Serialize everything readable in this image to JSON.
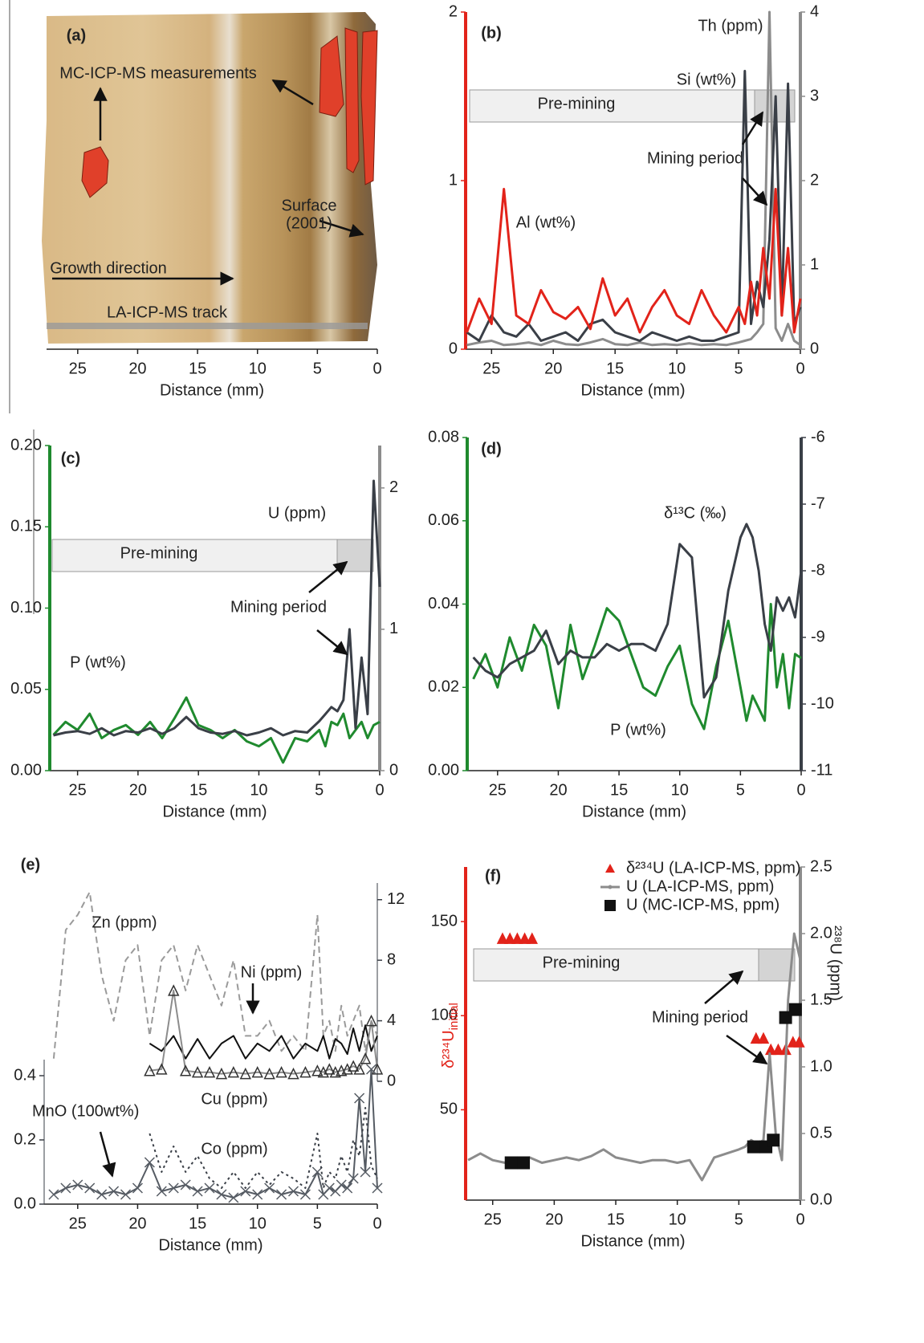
{
  "chart_data": [
    {
      "type": "image",
      "label": "(a)",
      "annotations": [
        "MC-ICP-MS measurements",
        "Surface",
        "(2001)",
        "Growth direction",
        "LA-ICP-MS track"
      ],
      "xlabel": "Distance (mm)",
      "xlim": [
        27.6,
        0
      ],
      "xticks": [
        25,
        20,
        15,
        10,
        5,
        0
      ]
    },
    {
      "type": "line",
      "label": "(b)",
      "xlabel": "Distance (mm)",
      "xlim": [
        27.1,
        0
      ],
      "xticks": [
        25,
        20,
        15,
        10,
        5,
        0
      ],
      "ylim": [
        0,
        2
      ],
      "yticks": [
        0,
        1,
        2
      ],
      "y2lim": [
        0,
        4
      ],
      "y2ticks": [
        0,
        1,
        2,
        3,
        4
      ],
      "y_color": "#e2231a",
      "y2_color": "#8c8c8c",
      "annotations": [
        "Pre-mining",
        "Mining period"
      ],
      "x": [
        27,
        26,
        25,
        24,
        23,
        22,
        21,
        20,
        19,
        18,
        17,
        16,
        15,
        14,
        13,
        12,
        11,
        10,
        9,
        8,
        7,
        6,
        5,
        4.5,
        4,
        3.5,
        3,
        2.5,
        2,
        1.5,
        1,
        0.5,
        0
      ],
      "series": [
        {
          "name": "Th (ppm)",
          "color": "#8c8c8c",
          "axis": "y2",
          "values": [
            0.05,
            0.08,
            0.1,
            0.05,
            0.06,
            0.08,
            0.05,
            0.1,
            0.06,
            0.05,
            0.08,
            0.12,
            0.06,
            0.05,
            0.08,
            0.05,
            0.06,
            0.05,
            0.07,
            0.05,
            0.06,
            0.05,
            0.08,
            0.1,
            0.12,
            0.2,
            0.3,
            4.0,
            0.25,
            0.1,
            0.3,
            0.1,
            0.05
          ]
        },
        {
          "name": "Si (wt%)",
          "color": "#3a3f47",
          "axis": "y2",
          "values": [
            0.2,
            0.1,
            0.4,
            0.2,
            0.15,
            0.3,
            0.1,
            0.15,
            0.2,
            0.1,
            0.3,
            0.35,
            0.2,
            0.15,
            0.1,
            0.2,
            0.15,
            0.1,
            0.15,
            0.1,
            0.1,
            0.15,
            0.2,
            3.3,
            0.3,
            0.8,
            0.5,
            1.3,
            3.0,
            0.4,
            3.15,
            0.3,
            0.5
          ]
        },
        {
          "name": "Al (wt%)",
          "color": "#e2231a",
          "values": [
            0.1,
            0.3,
            0.15,
            0.95,
            0.2,
            0.15,
            0.35,
            0.22,
            0.18,
            0.25,
            0.12,
            0.42,
            0.2,
            0.3,
            0.1,
            0.25,
            0.35,
            0.2,
            0.15,
            0.35,
            0.2,
            0.1,
            0.25,
            0.15,
            0.4,
            0.2,
            0.6,
            0.3,
            0.95,
            0.2,
            0.6,
            0.1,
            0.3
          ]
        }
      ]
    },
    {
      "type": "line",
      "label": "(c)",
      "xlabel": "Distance (mm)",
      "xlim": [
        27.3,
        0
      ],
      "xticks": [
        25,
        20,
        15,
        10,
        5,
        0
      ],
      "ylim": [
        0,
        0.2
      ],
      "yticks": [
        {
          "value": 0,
          "label": "0.00"
        },
        {
          "value": 0.05,
          "label": "0.05"
        },
        {
          "value": 0.1,
          "label": "0.10"
        },
        {
          "value": 0.15,
          "label": "0.15"
        },
        {
          "value": 0.2,
          "label": "0.20"
        }
      ],
      "y2lim": [
        0,
        2.3
      ],
      "y2ticks": [
        0,
        1,
        2
      ],
      "y_color": "#1f8a2e",
      "y2_color": "#8c8c8c",
      "annotations": [
        "Pre-mining",
        "Mining period"
      ],
      "x": [
        27,
        26,
        25,
        24,
        23,
        22,
        21,
        20,
        19,
        18,
        17,
        16,
        15,
        14,
        13,
        12,
        11,
        10,
        9,
        8,
        7,
        6,
        5,
        4.5,
        4,
        3.5,
        3,
        2.5,
        2,
        1.5,
        1,
        0.5,
        0
      ],
      "series": [
        {
          "name": "P (wt%)",
          "color": "#1f8a2e",
          "values": [
            0.022,
            0.03,
            0.025,
            0.035,
            0.02,
            0.025,
            0.028,
            0.022,
            0.03,
            0.02,
            0.032,
            0.045,
            0.028,
            0.025,
            0.02,
            0.025,
            0.018,
            0.015,
            0.02,
            0.005,
            0.02,
            0.018,
            0.025,
            0.015,
            0.03,
            0.028,
            0.035,
            0.02,
            0.025,
            0.03,
            0.02,
            0.028,
            0.03
          ]
        },
        {
          "name": "U (ppm)",
          "color": "#3a3f47",
          "axis": "y2",
          "values": [
            0.25,
            0.27,
            0.28,
            0.26,
            0.3,
            0.25,
            0.28,
            0.27,
            0.3,
            0.26,
            0.3,
            0.38,
            0.3,
            0.27,
            0.26,
            0.28,
            0.25,
            0.27,
            0.3,
            0.25,
            0.28,
            0.27,
            0.35,
            0.4,
            0.45,
            0.42,
            0.5,
            1.0,
            0.3,
            0.8,
            0.4,
            2.05,
            1.3
          ]
        }
      ]
    },
    {
      "type": "line",
      "label": "(d)",
      "xlabel": "Distance (mm)",
      "xlim": [
        27.5,
        0
      ],
      "xticks": [
        25,
        20,
        15,
        10,
        5,
        0
      ],
      "ylim": [
        0,
        0.08
      ],
      "yticks": [
        {
          "value": 0,
          "label": "0.00"
        },
        {
          "value": 0.02,
          "label": "0.02"
        },
        {
          "value": 0.04,
          "label": "0.04"
        },
        {
          "value": 0.06,
          "label": "0.06"
        },
        {
          "value": 0.08,
          "label": "0.08"
        }
      ],
      "y2lim": [
        -11,
        -6
      ],
      "y2ticks": [
        -6,
        -7,
        -8,
        -9,
        -10,
        -11
      ],
      "y_color": "#1f8a2e",
      "y2_color": "#3a3f47",
      "x": [
        27,
        26,
        25,
        24,
        23,
        22,
        21,
        20,
        19,
        18,
        17,
        16,
        15,
        14,
        13,
        12,
        11,
        10,
        9,
        8,
        7,
        6,
        5,
        4.5,
        4,
        3.5,
        3,
        2.5,
        2,
        1.5,
        1,
        0.5,
        0
      ],
      "series": [
        {
          "name": "P (wt%)",
          "color": "#1f8a2e",
          "values": [
            0.022,
            0.028,
            0.02,
            0.032,
            0.024,
            0.035,
            0.03,
            0.015,
            0.035,
            0.022,
            0.03,
            0.039,
            0.036,
            0.028,
            0.02,
            0.018,
            0.025,
            0.03,
            0.016,
            0.01,
            0.025,
            0.036,
            0.02,
            0.012,
            0.018,
            0.015,
            0.012,
            0.04,
            0.02,
            0.028,
            0.015,
            0.028,
            0.027
          ]
        },
        {
          "name": "δ¹³C (‰)",
          "color": "#3a3f47",
          "axis": "y2",
          "values": [
            -9.3,
            -9.5,
            -9.6,
            -9.4,
            -9.3,
            -9.2,
            -8.9,
            -9.4,
            -9.2,
            -9.3,
            -9.3,
            -9.1,
            -9.2,
            -9.1,
            -9.1,
            -9.2,
            -8.8,
            -7.6,
            -7.8,
            -9.9,
            -9.6,
            -8.3,
            -7.5,
            -7.3,
            -7.5,
            -8.0,
            -8.8,
            -9.2,
            -8.4,
            -8.6,
            -8.4,
            -8.7,
            -8.0
          ]
        }
      ]
    },
    {
      "type": "line",
      "label": "(e)",
      "xlabel": "Distance (mm)",
      "xlim": [
        27.8,
        0
      ],
      "xticks": [
        25,
        20,
        15,
        10,
        5,
        0
      ],
      "ylim": [
        0,
        0.45
      ],
      "yticks": [
        {
          "value": 0,
          "label": "0.0"
        },
        {
          "value": 0.2,
          "label": "0.2"
        },
        {
          "value": 0.4,
          "label": "0.4"
        }
      ],
      "y2lim": [
        0,
        13.1
      ],
      "y2ticks": [
        0,
        4,
        8,
        12
      ],
      "y_color": "#3a3f47",
      "y2_color": "#3a3f47",
      "x": [
        27,
        26,
        25,
        24,
        23,
        22,
        21,
        20,
        19,
        18,
        17,
        16,
        15,
        14,
        13,
        12,
        11,
        10,
        9,
        8,
        7,
        6,
        5,
        4.5,
        4,
        3.5,
        3,
        2.5,
        2,
        1.5,
        1,
        0.5,
        0
      ],
      "series": [
        {
          "name": "Zn (ppm)",
          "color": "#9a9a9a",
          "axis": "y2",
          "dash": "dashed",
          "values": [
            1.5,
            10,
            11,
            12.5,
            7,
            4,
            8,
            9,
            3,
            8,
            9,
            6,
            9,
            7,
            5,
            8,
            3,
            3,
            4,
            2,
            3,
            2,
            11,
            3,
            4,
            2,
            5,
            3,
            4,
            5,
            2,
            4,
            3
          ]
        },
        {
          "name": "Ni (ppm)",
          "color": "#111111",
          "axis": "y2",
          "values": [
            null,
            null,
            null,
            null,
            null,
            null,
            null,
            null,
            2.5,
            2,
            3,
            1.5,
            2.8,
            1.5,
            2.5,
            3,
            1.5,
            2.5,
            2,
            3,
            1.5,
            2.5,
            2,
            3,
            1.5,
            2.8,
            2.5,
            1.8,
            3.5,
            2,
            3.7,
            2,
            3
          ]
        },
        {
          "name": "Cu (ppm)",
          "color": "#8c8c8c",
          "axis": "y2",
          "marker": "triangle",
          "values": [
            null,
            null,
            null,
            null,
            null,
            null,
            null,
            null,
            0.7,
            0.8,
            6,
            0.7,
            0.6,
            0.6,
            0.5,
            0.6,
            0.5,
            0.6,
            0.5,
            0.6,
            0.5,
            0.6,
            0.7,
            0.6,
            0.8,
            0.6,
            0.7,
            0.8,
            1.0,
            0.8,
            1.5,
            4,
            0.8
          ]
        },
        {
          "name": "MnO (100wt%)",
          "color": "#555b63",
          "marker": "x",
          "values": [
            0.03,
            0.05,
            0.06,
            0.05,
            0.03,
            0.04,
            0.03,
            0.05,
            0.13,
            0.04,
            0.05,
            0.06,
            0.04,
            0.05,
            0.03,
            0.02,
            0.04,
            0.03,
            0.05,
            0.03,
            0.04,
            0.03,
            0.1,
            0.03,
            0.05,
            0.04,
            0.06,
            0.05,
            0.08,
            0.33,
            0.1,
            0.42,
            0.05
          ]
        },
        {
          "name": "Co (ppm)",
          "color": "#3a3f47",
          "dash": "dotted",
          "values": [
            null,
            null,
            null,
            null,
            null,
            null,
            null,
            null,
            0.22,
            0.1,
            0.18,
            0.1,
            0.15,
            0.08,
            0.05,
            0.1,
            0.05,
            0.1,
            0.06,
            0.1,
            0.08,
            0.05,
            0.22,
            0.05,
            0.1,
            0.08,
            0.15,
            0.1,
            0.2,
            0.15,
            0.3,
            0.12,
            0.08
          ]
        }
      ]
    },
    {
      "type": "line",
      "label": "(f)",
      "xlabel": "Distance (mm)",
      "xlim": [
        27.2,
        0
      ],
      "xticks": [
        25,
        20,
        15,
        10,
        5,
        0
      ],
      "ylabel": "δ²³⁴U",
      "ylabel_sub": "initial",
      "y2label": "²³⁸U (ppm)",
      "ylim": [
        2,
        179
      ],
      "yticks": [
        50,
        100,
        150
      ],
      "y2lim": [
        0,
        2.5
      ],
      "y2ticks": [
        {
          "value": 0,
          "label": "0.0"
        },
        {
          "value": 0.5,
          "label": "0.5"
        },
        {
          "value": 1,
          "label": "1.0"
        },
        {
          "value": 1.5,
          "label": "1.5"
        },
        {
          "value": 2,
          "label": "2.0"
        },
        {
          "value": 2.5,
          "label": "2.5"
        }
      ],
      "y_color": "#e2231a",
      "y2_color": "#8c8c8c",
      "legend": "top-right",
      "annotations": [
        "Pre-mining",
        "Mining period"
      ],
      "x": [
        27,
        26,
        25,
        24,
        23,
        22,
        21,
        20,
        19,
        18,
        17,
        16,
        15,
        14,
        13,
        12,
        11,
        10,
        9,
        8,
        7,
        6,
        5,
        4.5,
        4,
        3.5,
        3,
        2.5,
        2,
        1.5,
        1,
        0.5,
        0
      ],
      "series": [
        {
          "name": "δ²³⁴U (LA-ICP-MS, ppm)",
          "color": "#e2231a",
          "marker": "triangle",
          "line": false,
          "x": [
            24.2,
            23.6,
            23,
            22.4,
            21.8,
            3.6,
            3.0,
            2.4,
            1.8,
            1.2,
            0.6,
            0.1
          ],
          "values": [
            141,
            141,
            141,
            141,
            141,
            88,
            88,
            82,
            82,
            82,
            86,
            86
          ]
        },
        {
          "name": "U (LA-ICP-MS, ppm)",
          "color": "#8c8c8c",
          "axis": "y2",
          "values": [
            0.3,
            0.35,
            0.3,
            0.28,
            0.3,
            0.32,
            0.28,
            0.3,
            0.32,
            0.3,
            0.33,
            0.38,
            0.32,
            0.3,
            0.28,
            0.3,
            0.3,
            0.28,
            0.3,
            0.15,
            0.32,
            0.35,
            0.38,
            0.4,
            0.45,
            0.42,
            0.45,
            1.1,
            0.5,
            0.3,
            1.5,
            2.0,
            1.8
          ]
        },
        {
          "name": "U (MC-ICP-MS, ppm)",
          "color": "#111111",
          "axis": "y2",
          "marker": "square",
          "line": false,
          "x": [
            23.5,
            22.5,
            3.8,
            2.8,
            2.2,
            1.2,
            0.4
          ],
          "values": [
            0.28,
            0.28,
            0.4,
            0.4,
            0.45,
            1.37,
            1.43
          ]
        }
      ]
    }
  ]
}
